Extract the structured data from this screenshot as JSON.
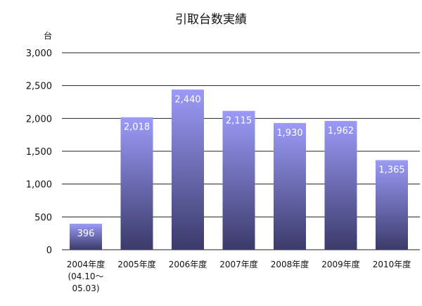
{
  "chart_data": {
    "type": "bar",
    "title": "引取台数実績",
    "ylabel": "台",
    "xlabel": "",
    "ylim": [
      0,
      3000
    ],
    "yticks": [
      0,
      500,
      1000,
      1500,
      2000,
      2500,
      3000
    ],
    "ytick_labels": [
      "0",
      "500",
      "1,000",
      "1,500",
      "2,000",
      "2,500",
      "3,000"
    ],
    "grid": true,
    "categories": [
      [
        "2004年度",
        "(04.10～",
        "05.03)"
      ],
      [
        "2005年度"
      ],
      [
        "2006年度"
      ],
      [
        "2007年度"
      ],
      [
        "2008年度"
      ],
      [
        "2009年度"
      ],
      [
        "2010年度"
      ]
    ],
    "values": [
      396,
      2018,
      2440,
      2115,
      1930,
      1962,
      1365
    ],
    "value_labels": [
      "396",
      "2,018",
      "2,440",
      "2,115",
      "1,930",
      "1,962",
      "1,365"
    ],
    "colors": {
      "bar_top": "#9b9bf8",
      "bar_bottom": "#3b3a6a",
      "grid": "#222222",
      "text": "#111111",
      "value_label": "#ffffff"
    }
  }
}
